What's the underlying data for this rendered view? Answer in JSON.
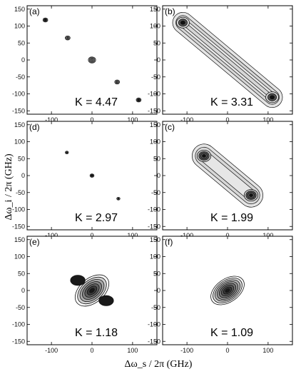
{
  "x_axis_label": "Δω_s / 2π (GHz)",
  "y_axis_label": "Δω_i / 2π (GHz)",
  "chart_data": [
    {
      "type": "contour",
      "panel_label": "(a)",
      "annotation": "K = 4.47",
      "xlim": [
        -160,
        160
      ],
      "ylim": [
        -160,
        160
      ],
      "x_ticks": [
        -100,
        0,
        100
      ],
      "y_ticks": [
        150,
        100,
        50,
        0,
        -50,
        -100,
        -150
      ],
      "peaks": [
        {
          "x": -115,
          "y": 118,
          "rx": 6,
          "ry": 6,
          "tone": "dark",
          "levels": 3
        },
        {
          "x": -60,
          "y": 65,
          "rx": 6,
          "ry": 6,
          "tone": "light",
          "levels": 3
        },
        {
          "x": 0,
          "y": 0,
          "rx": 9,
          "ry": 9,
          "tone": "light",
          "levels": 4
        },
        {
          "x": 62,
          "y": -65,
          "rx": 6,
          "ry": 6,
          "tone": "light",
          "levels": 3
        },
        {
          "x": 115,
          "y": -118,
          "rx": 6,
          "ry": 6,
          "tone": "dark",
          "levels": 3
        }
      ]
    },
    {
      "type": "contour",
      "panel_label": "(b)",
      "annotation": "K = 3.31",
      "xlim": [
        -160,
        160
      ],
      "ylim": [
        -160,
        160
      ],
      "x_ticks": [
        -100,
        0,
        100
      ],
      "y_ticks": [
        150,
        100,
        50,
        0,
        -50,
        -100,
        -150
      ],
      "band": {
        "x1": -110,
        "y1": 110,
        "x2": 110,
        "y2": -110,
        "halfwidth": 26,
        "inner_halfwidths": [
          18,
          11,
          5
        ]
      },
      "peaks": [
        {
          "x": -110,
          "y": 110,
          "rx": 16,
          "ry": 16,
          "tone": "dark",
          "levels": 3
        },
        {
          "x": 110,
          "y": -110,
          "rx": 16,
          "ry": 16,
          "tone": "dark",
          "levels": 3
        }
      ]
    },
    {
      "type": "contour",
      "panel_label": "(d)",
      "annotation": "K = 2.97",
      "xlim": [
        -160,
        160
      ],
      "ylim": [
        -160,
        160
      ],
      "x_ticks": [
        -100,
        0,
        100
      ],
      "y_ticks": [
        150,
        100,
        50,
        0,
        -50,
        -100,
        -150
      ],
      "peaks": [
        {
          "x": -62,
          "y": 68,
          "rx": 4,
          "ry": 4,
          "tone": "dark",
          "levels": 2
        },
        {
          "x": 0,
          "y": 0,
          "rx": 5,
          "ry": 5,
          "tone": "dark",
          "levels": 3
        },
        {
          "x": 65,
          "y": -68,
          "rx": 4,
          "ry": 4,
          "tone": "dark",
          "levels": 2
        }
      ]
    },
    {
      "type": "contour",
      "panel_label": "(c)",
      "annotation": "K = 1.99",
      "xlim": [
        -160,
        160
      ],
      "ylim": [
        -160,
        160
      ],
      "x_ticks": [
        -100,
        0,
        100
      ],
      "y_ticks": [
        150,
        100,
        50,
        0,
        -50,
        -100,
        -150
      ],
      "band": {
        "x1": -58,
        "y1": 58,
        "x2": 58,
        "y2": -58,
        "halfwidth": 30,
        "inner_halfwidths": [
          22,
          14
        ]
      },
      "peaks": [
        {
          "x": -58,
          "y": 58,
          "rx": 17,
          "ry": 17,
          "tone": "dark",
          "levels": 4
        },
        {
          "x": 58,
          "y": -58,
          "rx": 17,
          "ry": 17,
          "tone": "dark",
          "levels": 4
        }
      ]
    },
    {
      "type": "contour",
      "panel_label": "(e)",
      "annotation": "K = 1.18",
      "xlim": [
        -160,
        160
      ],
      "ylim": [
        -160,
        160
      ],
      "x_ticks": [
        -100,
        0,
        100
      ],
      "y_ticks": [
        150,
        100,
        50,
        0,
        -50,
        -100,
        -150
      ],
      "blob": {
        "x": 0,
        "y": 0,
        "rx": 48,
        "ry": 36,
        "rotate": -40,
        "levels": 7
      },
      "lobes": [
        {
          "x": -35,
          "y": 30,
          "rx": 18,
          "ry": 15
        },
        {
          "x": 35,
          "y": -30,
          "rx": 18,
          "ry": 15
        }
      ]
    },
    {
      "type": "contour",
      "panel_label": "(f)",
      "annotation": "K = 1.09",
      "xlim": [
        -160,
        160
      ],
      "ylim": [
        -160,
        160
      ],
      "x_ticks": [
        -100,
        0,
        100
      ],
      "y_ticks": [
        150,
        100,
        50,
        0,
        -50,
        -100,
        -150
      ],
      "blob": {
        "x": 0,
        "y": 0,
        "rx": 46,
        "ry": 34,
        "rotate": -35,
        "levels": 8
      }
    }
  ]
}
